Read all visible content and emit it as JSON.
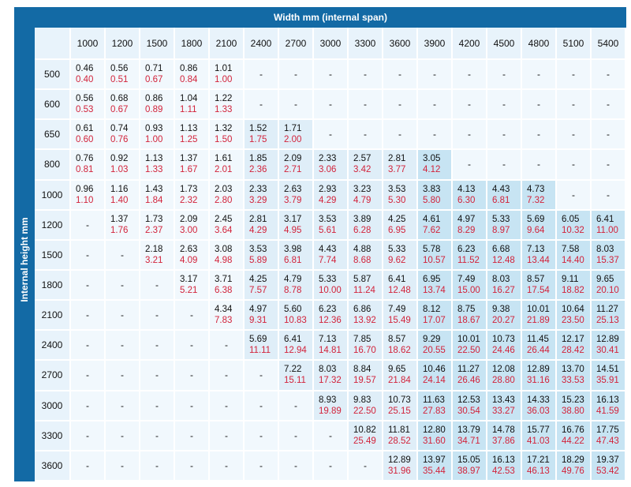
{
  "title": "Width mm (internal span)",
  "side_label": "Internal height mm",
  "columns": [
    "1000",
    "1200",
    "1500",
    "1800",
    "2100",
    "2400",
    "2700",
    "3000",
    "3300",
    "3600",
    "3900",
    "4200",
    "4500",
    "4800",
    "5100",
    "5400"
  ],
  "rows": [
    {
      "height": "500",
      "cells": [
        [
          "0.46",
          "0.40"
        ],
        [
          "0.56",
          "0.51"
        ],
        [
          "0.71",
          "0.67"
        ],
        [
          "0.86",
          "0.84"
        ],
        [
          "1.01",
          "1.00"
        ],
        "-",
        "-",
        "-",
        "-",
        "-",
        "-",
        "-",
        "-",
        "-",
        "-",
        "-"
      ]
    },
    {
      "height": "600",
      "cells": [
        [
          "0.56",
          "0.53"
        ],
        [
          "0.68",
          "0.67"
        ],
        [
          "0.86",
          "0.89"
        ],
        [
          "1.04",
          "1.11"
        ],
        [
          "1.22",
          "1.33"
        ],
        "-",
        "-",
        "-",
        "-",
        "-",
        "-",
        "-",
        "-",
        "-",
        "-",
        "-"
      ]
    },
    {
      "height": "650",
      "cells": [
        [
          "0.61",
          "0.60"
        ],
        [
          "0.74",
          "0.76"
        ],
        [
          "0.93",
          "1.00"
        ],
        [
          "1.13",
          "1.25"
        ],
        [
          "1.32",
          "1.50"
        ],
        [
          "1.52",
          "1.75"
        ],
        [
          "1.71",
          "2.00"
        ],
        "-",
        "-",
        "-",
        "-",
        "-",
        "-",
        "-",
        "-",
        "-"
      ]
    },
    {
      "height": "800",
      "cells": [
        [
          "0.76",
          "0.81"
        ],
        [
          "0.92",
          "1.03"
        ],
        [
          "1.13",
          "1.33"
        ],
        [
          "1.37",
          "1.67"
        ],
        [
          "1.61",
          "2.01"
        ],
        [
          "1.85",
          "2.36"
        ],
        [
          "2.09",
          "2.71"
        ],
        [
          "2.33",
          "3.06"
        ],
        [
          "2.57",
          "3.42"
        ],
        [
          "2.81",
          "3.77"
        ],
        [
          "3.05",
          "4.12"
        ],
        "-",
        "-",
        "-",
        "-",
        "-"
      ]
    },
    {
      "height": "1000",
      "cells": [
        [
          "0.96",
          "1.10"
        ],
        [
          "1.16",
          "1.40"
        ],
        [
          "1.43",
          "1.84"
        ],
        [
          "1.73",
          "2.32"
        ],
        [
          "2.03",
          "2.80"
        ],
        [
          "2.33",
          "3.29"
        ],
        [
          "2.63",
          "3.79"
        ],
        [
          "2.93",
          "4.29"
        ],
        [
          "3.23",
          "4.79"
        ],
        [
          "3.53",
          "5.30"
        ],
        [
          "3.83",
          "5.80"
        ],
        [
          "4.13",
          "6.30"
        ],
        [
          "4.43",
          "6.81"
        ],
        [
          "4.73",
          "7.32"
        ],
        "-",
        "-"
      ]
    },
    {
      "height": "1200",
      "cells": [
        "-",
        [
          "1.37",
          "1.76"
        ],
        [
          "1.73",
          "2.37"
        ],
        [
          "2.09",
          "3.00"
        ],
        [
          "2.45",
          "3.64"
        ],
        [
          "2.81",
          "4.29"
        ],
        [
          "3.17",
          "4.95"
        ],
        [
          "3.53",
          "5.61"
        ],
        [
          "3.89",
          "6.28"
        ],
        [
          "4.25",
          "6.95"
        ],
        [
          "4.61",
          "7.62"
        ],
        [
          "4.97",
          "8.29"
        ],
        [
          "5.33",
          "8.97"
        ],
        [
          "5.69",
          "9.64"
        ],
        [
          "6.05",
          "10.32"
        ],
        [
          "6.41",
          "11.00"
        ]
      ]
    },
    {
      "height": "1500",
      "cells": [
        "-",
        "-",
        [
          "2.18",
          "3.21"
        ],
        [
          "2.63",
          "4.09"
        ],
        [
          "3.08",
          "4.98"
        ],
        [
          "3.53",
          "5.89"
        ],
        [
          "3.98",
          "6.81"
        ],
        [
          "4.43",
          "7.74"
        ],
        [
          "4.88",
          "8.68"
        ],
        [
          "5.33",
          "9.62"
        ],
        [
          "5.78",
          "10.57"
        ],
        [
          "6.23",
          "11.52"
        ],
        [
          "6.68",
          "12.48"
        ],
        [
          "7.13",
          "13.44"
        ],
        [
          "7.58",
          "14.40"
        ],
        [
          "8.03",
          "15.37"
        ]
      ]
    },
    {
      "height": "1800",
      "cells": [
        "-",
        "-",
        "-",
        [
          "3.17",
          "5.21"
        ],
        [
          "3.71",
          "6.38"
        ],
        [
          "4.25",
          "7.57"
        ],
        [
          "4.79",
          "8.78"
        ],
        [
          "5.33",
          "10.00"
        ],
        [
          "5.87",
          "11.24"
        ],
        [
          "6.41",
          "12.48"
        ],
        [
          "6.95",
          "13.74"
        ],
        [
          "7.49",
          "15.00"
        ],
        [
          "8.03",
          "16.27"
        ],
        [
          "8.57",
          "17.54"
        ],
        [
          "9.11",
          "18.82"
        ],
        [
          "9.65",
          "20.10"
        ]
      ]
    },
    {
      "height": "2100",
      "cells": [
        "-",
        "-",
        "-",
        "-",
        [
          "4.34",
          "7.83"
        ],
        [
          "4.97",
          "9.31"
        ],
        [
          "5.60",
          "10.83"
        ],
        [
          "6.23",
          "12.36"
        ],
        [
          "6.86",
          "13.92"
        ],
        [
          "7.49",
          "15.49"
        ],
        [
          "8.12",
          "17.07"
        ],
        [
          "8.75",
          "18.67"
        ],
        [
          "9.38",
          "20.27"
        ],
        [
          "10.01",
          "21.89"
        ],
        [
          "10.64",
          "23.50"
        ],
        [
          "11.27",
          "25.13"
        ]
      ]
    },
    {
      "height": "2400",
      "cells": [
        "-",
        "-",
        "-",
        "-",
        "-",
        [
          "5.69",
          "11.11"
        ],
        [
          "6.41",
          "12.94"
        ],
        [
          "7.13",
          "14.81"
        ],
        [
          "7.85",
          "16.70"
        ],
        [
          "8.57",
          "18.62"
        ],
        [
          "9.29",
          "20.55"
        ],
        [
          "10.01",
          "22.50"
        ],
        [
          "10.73",
          "24.46"
        ],
        [
          "11.45",
          "26.44"
        ],
        [
          "12.17",
          "28.42"
        ],
        [
          "12.89",
          "30.41"
        ]
      ]
    },
    {
      "height": "2700",
      "cells": [
        "-",
        "-",
        "-",
        "-",
        "-",
        "-",
        [
          "7.22",
          "15.11"
        ],
        [
          "8.03",
          "17.32"
        ],
        [
          "8.84",
          "19.57"
        ],
        [
          "9.65",
          "21.84"
        ],
        [
          "10.46",
          "24.14"
        ],
        [
          "11.27",
          "26.46"
        ],
        [
          "12.08",
          "28.80"
        ],
        [
          "12.89",
          "31.16"
        ],
        [
          "13.70",
          "33.53"
        ],
        [
          "14.51",
          "35.91"
        ]
      ]
    },
    {
      "height": "3000",
      "cells": [
        "-",
        "-",
        "-",
        "-",
        "-",
        "-",
        "-",
        [
          "8.93",
          "19.89"
        ],
        [
          "9.83",
          "22.50"
        ],
        [
          "10.73",
          "25.15"
        ],
        [
          "11.63",
          "27.83"
        ],
        [
          "12.53",
          "30.54"
        ],
        [
          "13.43",
          "33.27"
        ],
        [
          "14.33",
          "36.03"
        ],
        [
          "15.23",
          "38.80"
        ],
        [
          "16.13",
          "41.59"
        ]
      ]
    },
    {
      "height": "3300",
      "cells": [
        "-",
        "-",
        "-",
        "-",
        "-",
        "-",
        "-",
        "-",
        [
          "10.82",
          "25.49"
        ],
        [
          "11.81",
          "28.52"
        ],
        [
          "12.80",
          "31.60"
        ],
        [
          "13.79",
          "34.71"
        ],
        [
          "14.78",
          "37.86"
        ],
        [
          "15.77",
          "41.03"
        ],
        [
          "16.76",
          "44.22"
        ],
        [
          "17.75",
          "47.43"
        ]
      ]
    },
    {
      "height": "3600",
      "cells": [
        "-",
        "-",
        "-",
        "-",
        "-",
        "-",
        "-",
        "-",
        "-",
        [
          "12.89",
          "31.96"
        ],
        [
          "13.97",
          "35.44"
        ],
        [
          "15.05",
          "38.97"
        ],
        [
          "16.13",
          "42.53"
        ],
        [
          "17.21",
          "46.13"
        ],
        [
          "18.29",
          "49.76"
        ],
        [
          "19.37",
          "53.42"
        ]
      ]
    }
  ],
  "colors": {
    "header_bg": "#136aa5",
    "value_top": "#111111",
    "value_bottom": "#d2233b",
    "cell_light": "#dfeef8",
    "cell_mid": "#c7e4f3"
  }
}
